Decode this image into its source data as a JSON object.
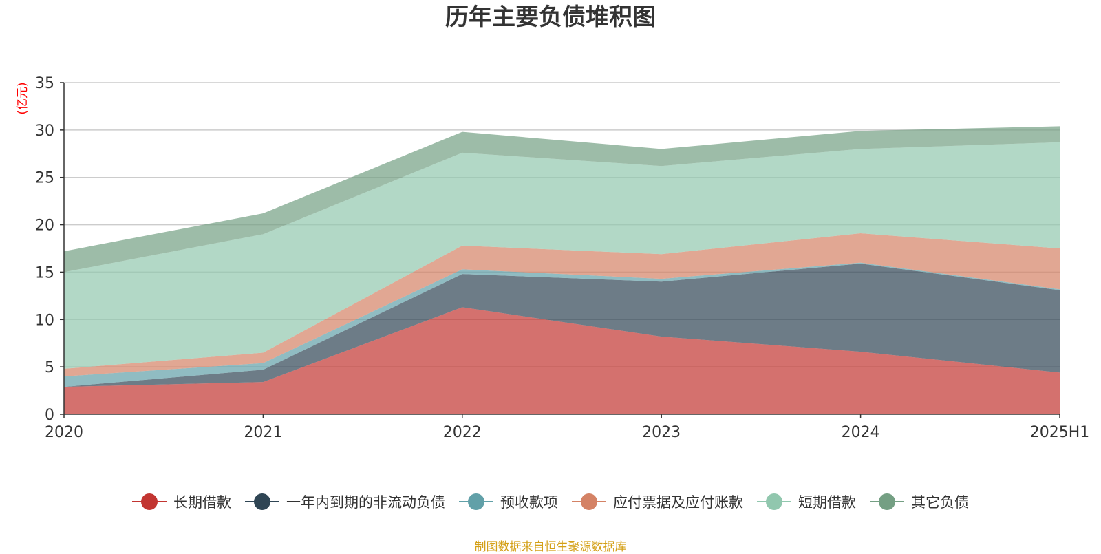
{
  "chart_data": {
    "type": "area",
    "stacked": true,
    "title": "历年主要负债堆积图",
    "ylabel": "(亿元)",
    "xlabel": "",
    "categories": [
      "2020",
      "2021",
      "2022",
      "2023",
      "2024",
      "2025H1"
    ],
    "ylim": [
      0,
      35
    ],
    "yticks": [
      0,
      5,
      10,
      15,
      20,
      25,
      30,
      35
    ],
    "grid": true,
    "legend_position": "bottom",
    "series": [
      {
        "name": "长期借款",
        "color": "#c23531",
        "values": [
          2.9,
          3.4,
          11.3,
          8.2,
          6.6,
          4.4
        ]
      },
      {
        "name": "一年内到期的非流动负债",
        "color": "#2f4554",
        "values": [
          0.0,
          1.3,
          3.5,
          5.8,
          9.3,
          8.7
        ]
      },
      {
        "name": "预收款项",
        "color": "#61a0a8",
        "values": [
          1.1,
          0.7,
          0.5,
          0.3,
          0.1,
          0.1
        ]
      },
      {
        "name": "应付票据及应付账款",
        "color": "#d48265",
        "values": [
          0.8,
          1.1,
          2.5,
          2.6,
          3.1,
          4.3
        ]
      },
      {
        "name": "短期借款",
        "color": "#91c7ae",
        "values": [
          10.2,
          12.5,
          9.8,
          9.3,
          8.9,
          11.2
        ]
      },
      {
        "name": "其它负债",
        "color": "#749f83",
        "values": [
          2.2,
          2.2,
          2.2,
          1.8,
          1.9,
          1.7
        ]
      }
    ]
  },
  "source_note": "制图数据来自恒生聚源数据库"
}
